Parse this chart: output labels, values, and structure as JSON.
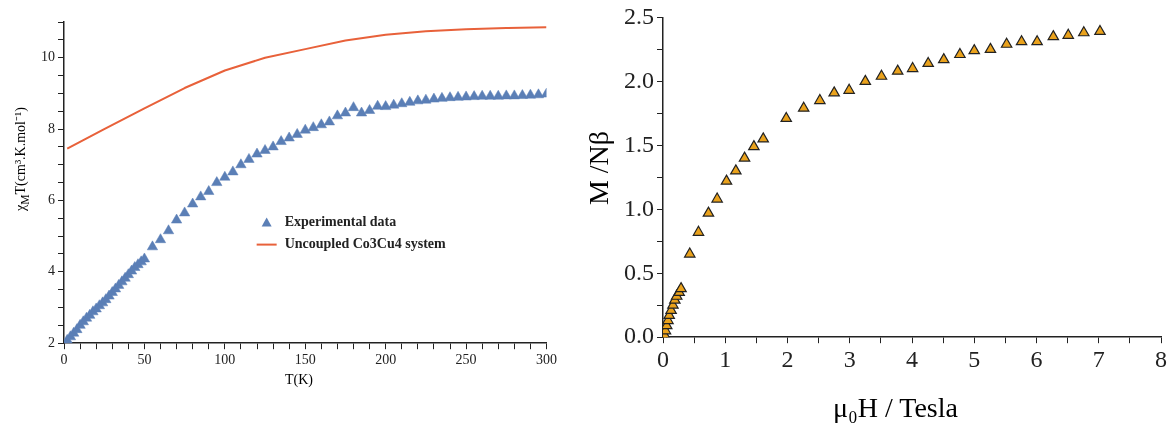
{
  "chart_data": [
    {
      "type": "scatter",
      "xlabel": "T(K)",
      "ylabel": "χ$_{M}$T(cm³.K.mol⁻¹)",
      "legend": "center right",
      "grid": false,
      "xlim": [
        0,
        300
      ],
      "ylim": [
        2,
        11
      ],
      "xticks": [
        0,
        {
          "value": 10,
          "label": null
        },
        {
          "value": 20,
          "label": null
        },
        {
          "value": 30,
          "label": null
        },
        {
          "value": 40,
          "label": null
        },
        50,
        {
          "value": 60,
          "label": null
        },
        {
          "value": 70,
          "label": null
        },
        {
          "value": 80,
          "label": null
        },
        {
          "value": 90,
          "label": null
        },
        100,
        {
          "value": 110,
          "label": null
        },
        {
          "value": 120,
          "label": null
        },
        {
          "value": 130,
          "label": null
        },
        {
          "value": 140,
          "label": null
        },
        150,
        {
          "value": 160,
          "label": null
        },
        {
          "value": 170,
          "label": null
        },
        {
          "value": 180,
          "label": null
        },
        {
          "value": 190,
          "label": null
        },
        200,
        {
          "value": 210,
          "label": null
        },
        {
          "value": 220,
          "label": null
        },
        {
          "value": 230,
          "label": null
        },
        {
          "value": 240,
          "label": null
        },
        250,
        {
          "value": 260,
          "label": null
        },
        {
          "value": 270,
          "label": null
        },
        {
          "value": 280,
          "label": null
        },
        {
          "value": 290,
          "label": null
        },
        300
      ],
      "yticks": [
        2,
        {
          "value": 2.5,
          "label": null
        },
        {
          "value": 3,
          "label": null
        },
        {
          "value": 3.5,
          "label": null
        },
        4,
        {
          "value": 4.5,
          "label": null
        },
        {
          "value": 5,
          "label": null
        },
        {
          "value": 5.5,
          "label": null
        },
        6,
        {
          "value": 6.5,
          "label": null
        },
        {
          "value": 7,
          "label": null
        },
        {
          "value": 7.5,
          "label": null
        },
        8,
        {
          "value": 8.5,
          "label": null
        },
        {
          "value": 9,
          "label": null
        },
        {
          "value": 9.5,
          "label": null
        },
        10,
        {
          "value": 10.5,
          "label": null
        },
        {
          "value": 11,
          "label": null
        }
      ],
      "series": [
        {
          "name": "Experimental data",
          "marker": "triangle",
          "color": "#5b7fb6",
          "x": [
            2,
            4,
            6,
            8,
            10,
            12,
            14,
            16,
            18,
            20,
            22,
            24,
            26,
            28,
            30,
            32,
            34,
            36,
            38,
            40,
            42,
            44,
            46,
            48,
            50,
            55,
            60,
            65,
            70,
            75,
            80,
            85,
            90,
            95,
            100,
            105,
            110,
            115,
            120,
            125,
            130,
            135,
            140,
            145,
            150,
            155,
            160,
            165,
            170,
            175,
            180,
            185,
            190,
            195,
            200,
            205,
            210,
            215,
            220,
            225,
            230,
            235,
            240,
            245,
            250,
            255,
            260,
            265,
            270,
            275,
            280,
            285,
            290,
            295,
            300
          ],
          "values": [
            2.08,
            2.18,
            2.28,
            2.38,
            2.5,
            2.6,
            2.7,
            2.78,
            2.88,
            2.96,
            3.05,
            3.13,
            3.22,
            3.32,
            3.42,
            3.52,
            3.62,
            3.72,
            3.82,
            3.92,
            4.02,
            4.12,
            4.2,
            4.28,
            4.36,
            4.7,
            4.9,
            5.15,
            5.45,
            5.65,
            5.9,
            6.1,
            6.25,
            6.5,
            6.65,
            6.8,
            7.0,
            7.15,
            7.3,
            7.4,
            7.5,
            7.65,
            7.75,
            7.85,
            7.97,
            8.04,
            8.12,
            8.2,
            8.37,
            8.45,
            8.6,
            8.45,
            8.52,
            8.64,
            8.63,
            8.67,
            8.71,
            8.75,
            8.79,
            8.81,
            8.84,
            8.86,
            8.88,
            8.89,
            8.9,
            8.91,
            8.92,
            8.92,
            8.92,
            8.93,
            8.93,
            8.94,
            8.95,
            8.96,
            8.98
          ]
        },
        {
          "name": "Uncoupled Co3Cu4 system",
          "type": "line",
          "marker": "none",
          "line_style": "solid",
          "color": "#e8613a",
          "x": [
            2,
            25,
            50,
            75,
            100,
            125,
            150,
            175,
            200,
            225,
            250,
            275,
            300
          ],
          "values": [
            7.45,
            8.0,
            8.58,
            9.15,
            9.64,
            10.0,
            10.24,
            10.48,
            10.64,
            10.74,
            10.8,
            10.83,
            10.85
          ]
        }
      ]
    },
    {
      "type": "scatter",
      "xlabel": "μ₀H / Tesla",
      "ylabel": "M /Nβ",
      "grid": false,
      "xlim": [
        0,
        8
      ],
      "ylim": [
        0,
        2.5
      ],
      "xticks": [
        0,
        {
          "value": 0.5,
          "label": null
        },
        1,
        {
          "value": 1.5,
          "label": null
        },
        2,
        {
          "value": 2.5,
          "label": null
        },
        3,
        {
          "value": 3.5,
          "label": null
        },
        4,
        {
          "value": 4.5,
          "label": null
        },
        5,
        {
          "value": 5.5,
          "label": null
        },
        6,
        {
          "value": 6.5,
          "label": null
        },
        7,
        {
          "value": 7.5,
          "label": null
        },
        8
      ],
      "yticks": [
        {
          "value": 0,
          "label": "0.0"
        },
        {
          "value": 0.25,
          "label": null
        },
        0.5,
        {
          "value": 0.75,
          "label": null
        },
        {
          "value": 1,
          "label": "1.0"
        },
        {
          "value": 1.25,
          "label": null
        },
        1.5,
        {
          "value": 1.75,
          "label": null
        },
        {
          "value": 2,
          "label": "2.0"
        },
        {
          "value": 2.25,
          "label": null
        },
        2.5
      ],
      "series": [
        {
          "marker": "triangle",
          "color": "#eaa21c",
          "x": [
            0,
            0.02,
            0.04,
            0.06,
            0.08,
            0.1,
            0.13,
            0.16,
            0.19,
            0.22,
            0.26,
            0.29,
            0.43,
            0.57,
            0.73,
            0.87,
            1.02,
            1.17,
            1.31,
            1.46,
            1.61,
            1.98,
            2.26,
            2.52,
            2.75,
            2.99,
            3.25,
            3.51,
            3.77,
            4.01,
            4.26,
            4.51,
            4.77,
            5.0,
            5.26,
            5.52,
            5.76,
            6.01,
            6.27,
            6.51,
            6.76,
            7.02
          ],
          "values": [
            0,
            0.02,
            0.05,
            0.09,
            0.13,
            0.17,
            0.21,
            0.25,
            0.29,
            0.32,
            0.35,
            0.38,
            0.65,
            0.82,
            0.97,
            1.08,
            1.22,
            1.3,
            1.4,
            1.49,
            1.55,
            1.71,
            1.79,
            1.85,
            1.91,
            1.93,
            2.0,
            2.04,
            2.08,
            2.1,
            2.14,
            2.17,
            2.21,
            2.24,
            2.25,
            2.29,
            2.31,
            2.31,
            2.35,
            2.36,
            2.38,
            2.39
          ]
        }
      ]
    }
  ]
}
